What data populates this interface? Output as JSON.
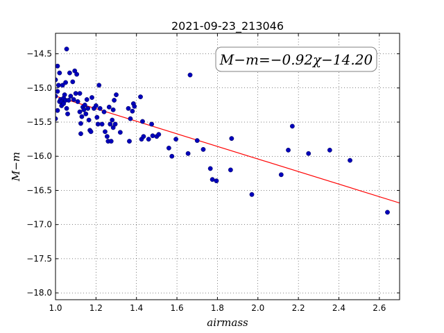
{
  "chart_data": {
    "type": "scatter",
    "title": "2021-09-23_213046",
    "xlabel": "airmass",
    "ylabel": "M−m",
    "xlim": [
      1.0,
      2.7
    ],
    "ylim": [
      -18.1,
      -14.2
    ],
    "x_ticks": [
      1.0,
      1.2,
      1.4,
      1.6,
      1.8,
      2.0,
      2.2,
      2.4,
      2.6
    ],
    "x_tick_labels": [
      "1.0",
      "1.2",
      "1.4",
      "1.6",
      "1.8",
      "2.0",
      "2.2",
      "2.4",
      "2.6"
    ],
    "y_ticks": [
      -14.5,
      -15.0,
      -15.5,
      -16.0,
      -16.5,
      -17.0,
      -17.5,
      -18.0
    ],
    "y_tick_labels": [
      "−14.5",
      "−15.0",
      "−15.5",
      "−16.0",
      "−16.5",
      "−17.0",
      "−17.5",
      "−18.0"
    ],
    "grid": true,
    "annotation": "M−m=−0.92χ−14.20",
    "fit": {
      "slope": -0.92,
      "intercept": -14.2,
      "color": "#ff0000"
    },
    "point_color": "#0000bb",
    "points": [
      [
        1.0,
        -14.88
      ],
      [
        1.0,
        -15.45
      ],
      [
        1.0,
        -15.12
      ],
      [
        1.01,
        -15.33
      ],
      [
        1.01,
        -15.05
      ],
      [
        1.01,
        -14.68
      ],
      [
        1.015,
        -14.96
      ],
      [
        1.02,
        -15.2
      ],
      [
        1.02,
        -14.78
      ],
      [
        1.025,
        -15.17
      ],
      [
        1.03,
        -15.26
      ],
      [
        1.03,
        -15.2
      ],
      [
        1.035,
        -14.96
      ],
      [
        1.04,
        -15.15
      ],
      [
        1.04,
        -15.23
      ],
      [
        1.045,
        -15.1
      ],
      [
        1.05,
        -14.92
      ],
      [
        1.05,
        -15.18
      ],
      [
        1.055,
        -14.43
      ],
      [
        1.055,
        -15.3
      ],
      [
        1.06,
        -15.38
      ],
      [
        1.065,
        -15.18
      ],
      [
        1.07,
        -14.78
      ],
      [
        1.075,
        -15.12
      ],
      [
        1.085,
        -14.91
      ],
      [
        1.09,
        -15.17
      ],
      [
        1.095,
        -14.75
      ],
      [
        1.1,
        -15.08
      ],
      [
        1.105,
        -14.8
      ],
      [
        1.11,
        -15.2
      ],
      [
        1.12,
        -15.08
      ],
      [
        1.12,
        -15.35
      ],
      [
        1.125,
        -15.52
      ],
      [
        1.125,
        -15.67
      ],
      [
        1.13,
        -15.42
      ],
      [
        1.135,
        -15.28
      ],
      [
        1.14,
        -15.32
      ],
      [
        1.145,
        -15.25
      ],
      [
        1.15,
        -15.38
      ],
      [
        1.155,
        -15.17
      ],
      [
        1.16,
        -15.3
      ],
      [
        1.165,
        -15.47
      ],
      [
        1.17,
        -15.62
      ],
      [
        1.175,
        -15.64
      ],
      [
        1.18,
        -15.14
      ],
      [
        1.19,
        -15.3
      ],
      [
        1.2,
        -15.26
      ],
      [
        1.205,
        -15.43
      ],
      [
        1.21,
        -15.53
      ],
      [
        1.215,
        -14.96
      ],
      [
        1.22,
        -15.3
      ],
      [
        1.23,
        -15.53
      ],
      [
        1.24,
        -15.35
      ],
      [
        1.245,
        -15.64
      ],
      [
        1.255,
        -15.71
      ],
      [
        1.26,
        -15.78
      ],
      [
        1.265,
        -15.28
      ],
      [
        1.27,
        -15.53
      ],
      [
        1.275,
        -15.78
      ],
      [
        1.28,
        -15.47
      ],
      [
        1.285,
        -15.32
      ],
      [
        1.285,
        -15.58
      ],
      [
        1.29,
        -15.18
      ],
      [
        1.295,
        -15.53
      ],
      [
        1.3,
        -15.1
      ],
      [
        1.32,
        -15.65
      ],
      [
        1.36,
        -15.3
      ],
      [
        1.365,
        -15.78
      ],
      [
        1.37,
        -15.45
      ],
      [
        1.38,
        -15.34
      ],
      [
        1.385,
        -15.23
      ],
      [
        1.39,
        -15.27
      ],
      [
        1.42,
        -15.13
      ],
      [
        1.425,
        -15.75
      ],
      [
        1.43,
        -15.49
      ],
      [
        1.435,
        -15.71
      ],
      [
        1.46,
        -15.75
      ],
      [
        1.475,
        -15.53
      ],
      [
        1.48,
        -15.7
      ],
      [
        1.5,
        -15.71
      ],
      [
        1.51,
        -15.68
      ],
      [
        1.56,
        -15.88
      ],
      [
        1.575,
        -16.0
      ],
      [
        1.595,
        -15.75
      ],
      [
        1.655,
        -15.96
      ],
      [
        1.665,
        -14.81
      ],
      [
        1.7,
        -15.77
      ],
      [
        1.73,
        -15.9
      ],
      [
        1.765,
        -16.18
      ],
      [
        1.775,
        -16.34
      ],
      [
        1.795,
        -16.36
      ],
      [
        1.865,
        -16.2
      ],
      [
        1.87,
        -15.74
      ],
      [
        1.97,
        -16.56
      ],
      [
        2.115,
        -16.27
      ],
      [
        2.15,
        -15.91
      ],
      [
        2.17,
        -15.56
      ],
      [
        2.25,
        -15.96
      ],
      [
        2.355,
        -15.91
      ],
      [
        2.455,
        -16.06
      ],
      [
        2.64,
        -16.82
      ]
    ]
  }
}
